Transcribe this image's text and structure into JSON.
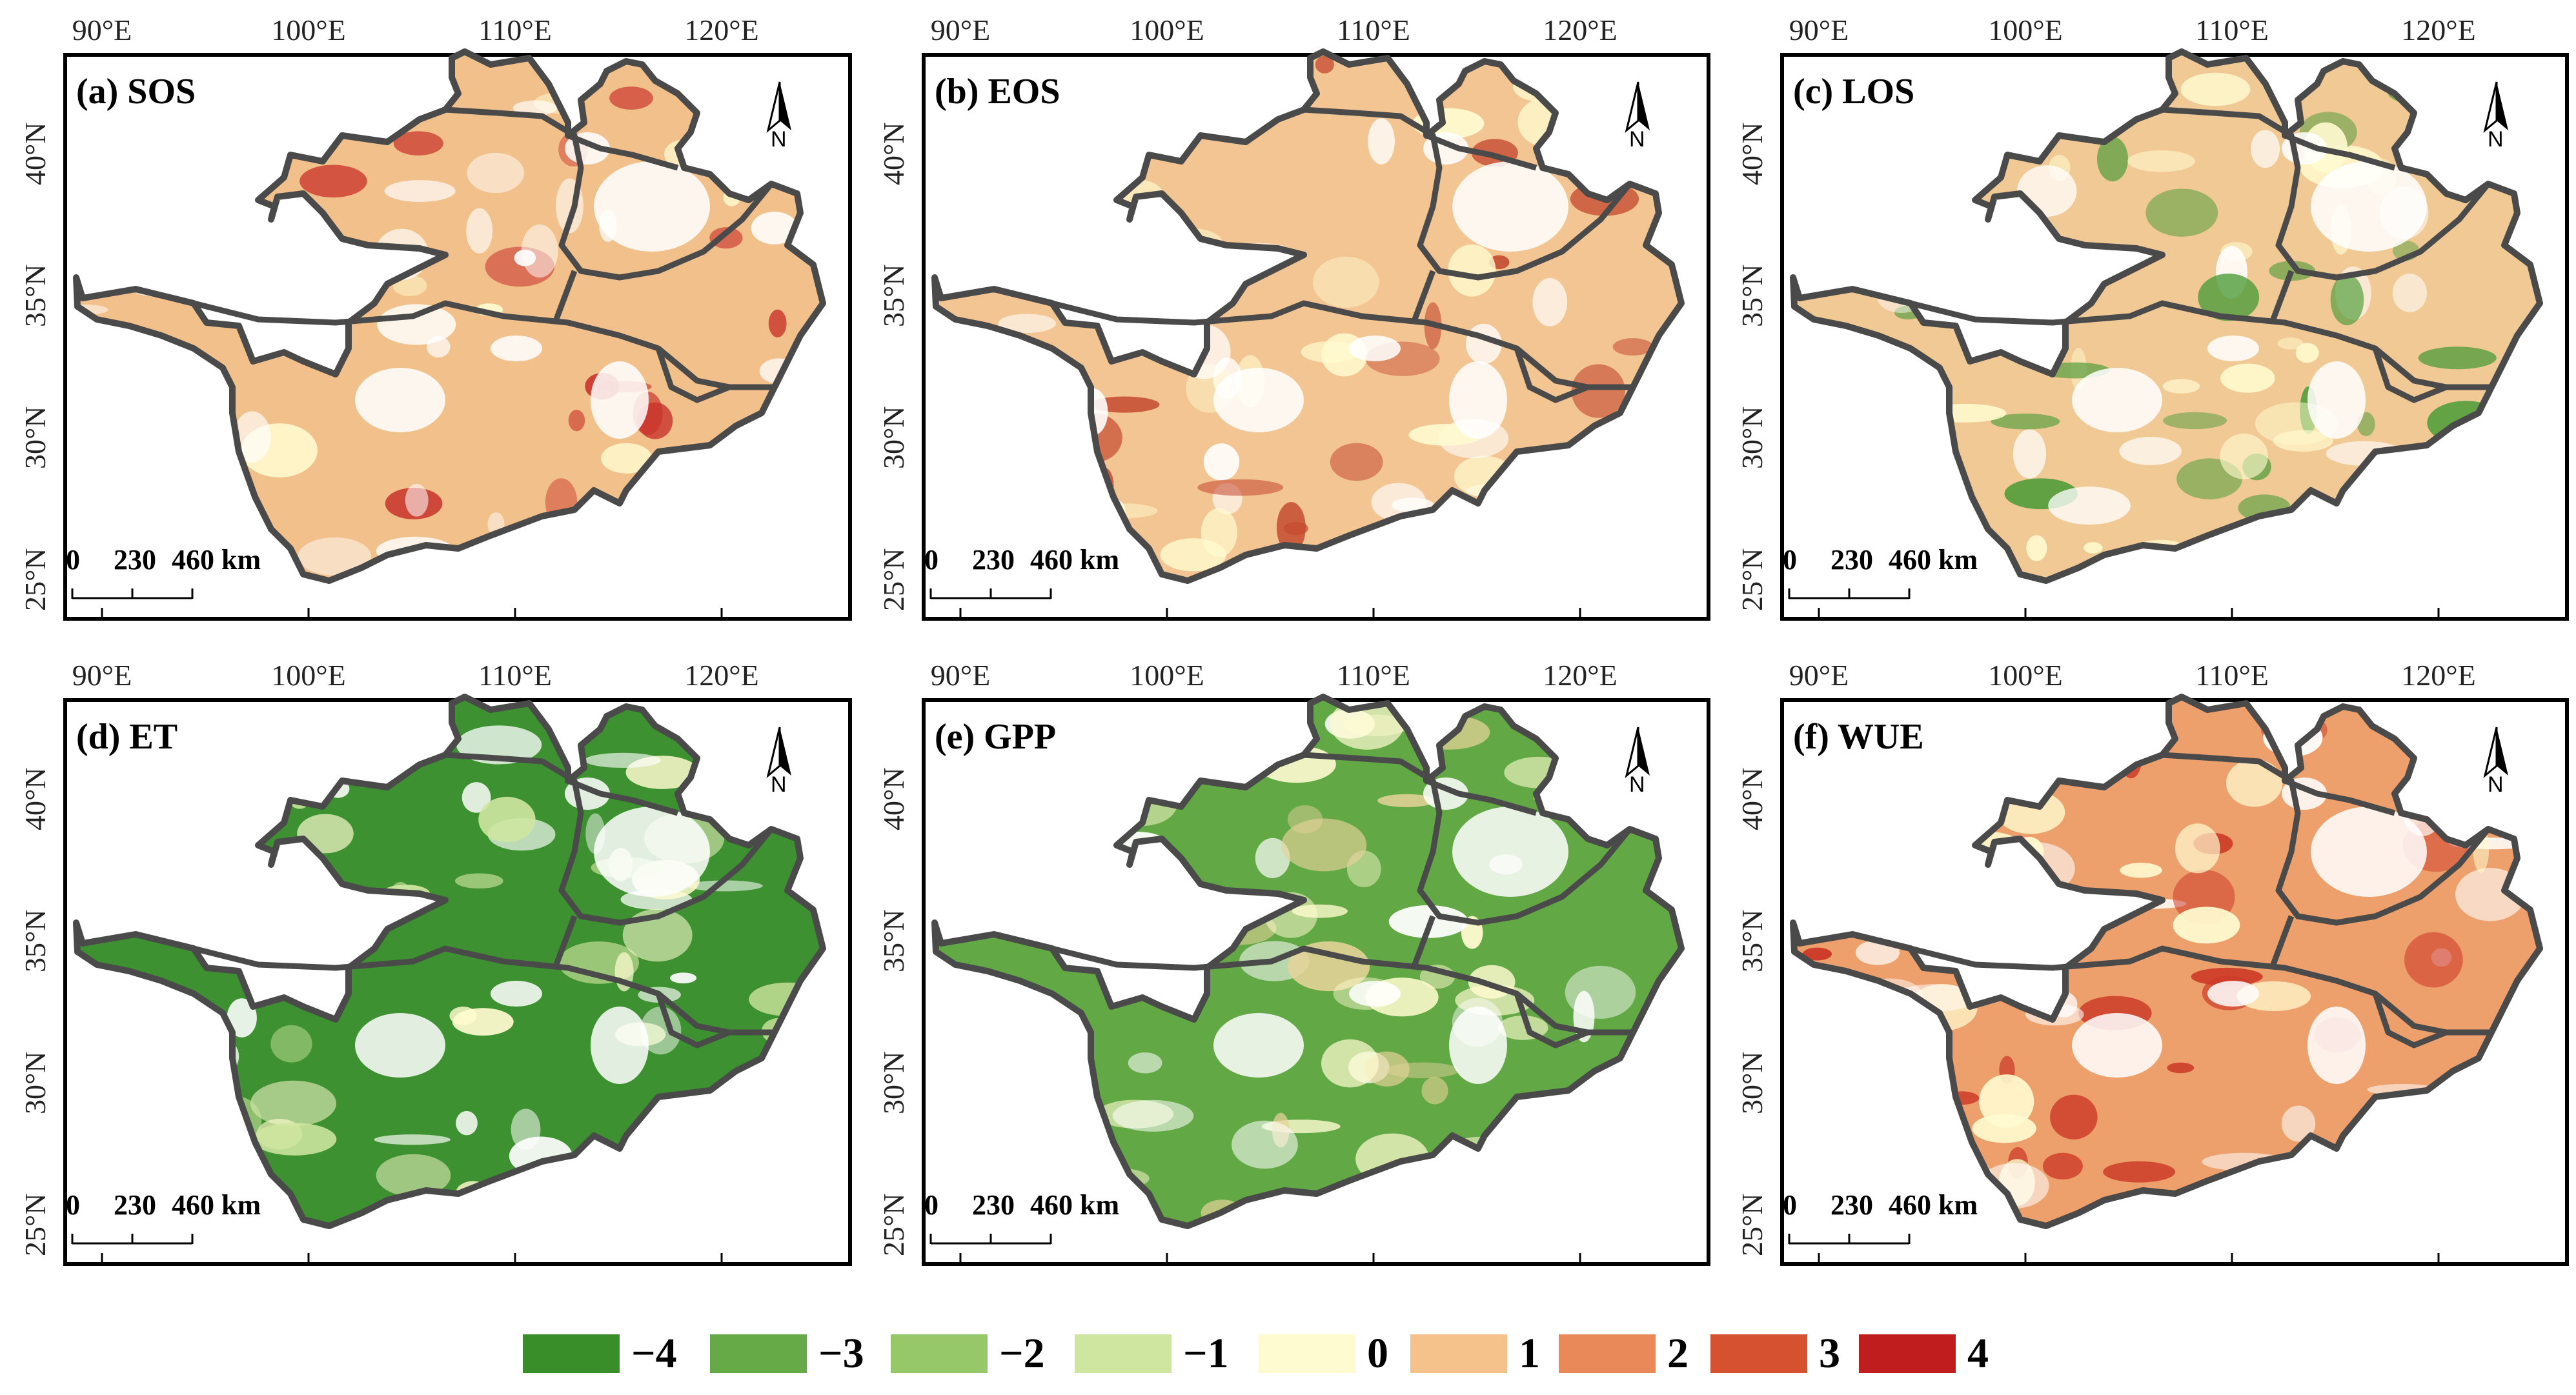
{
  "panels": [
    {
      "id": "a",
      "title": "(a) SOS",
      "dominant": "#f2c08b",
      "accent": "#c8322a"
    },
    {
      "id": "b",
      "title": "(b) EOS",
      "dominant": "#f3c592",
      "accent": "#c44a30"
    },
    {
      "id": "c",
      "title": "(c) LOS",
      "dominant": "#f1c995",
      "accent": "#4f9c3a"
    },
    {
      "id": "d",
      "title": "(d) ET",
      "dominant": "#3d9130",
      "accent": "#cfe6a0"
    },
    {
      "id": "e",
      "title": "(e) GPP",
      "dominant": "#62a845",
      "accent": "#e6d39a"
    },
    {
      "id": "f",
      "title": "(f) WUE",
      "dominant": "#eda06c",
      "accent": "#cc3a28"
    }
  ],
  "axes": {
    "lon_labels": [
      "90°E",
      "100°E",
      "110°E",
      "120°E"
    ],
    "lat_labels": [
      "40°N",
      "35°N",
      "30°N",
      "25°N"
    ]
  },
  "scalebar": {
    "labels": [
      "0",
      "230",
      "460 km"
    ]
  },
  "north_arrow": {
    "label": "N"
  },
  "legend": [
    {
      "label": "−4",
      "color": "#3a8e2a"
    },
    {
      "label": "−3",
      "color": "#66aa48"
    },
    {
      "label": "−2",
      "color": "#96c86a"
    },
    {
      "label": "−1",
      "color": "#cfe6a1"
    },
    {
      "label": "0",
      "color": "#fffbd0"
    },
    {
      "label": "1",
      "color": "#f5c28b"
    },
    {
      "label": "2",
      "color": "#e9895a"
    },
    {
      "label": "3",
      "color": "#d6512f"
    },
    {
      "label": "4",
      "color": "#c01e1e"
    }
  ]
}
